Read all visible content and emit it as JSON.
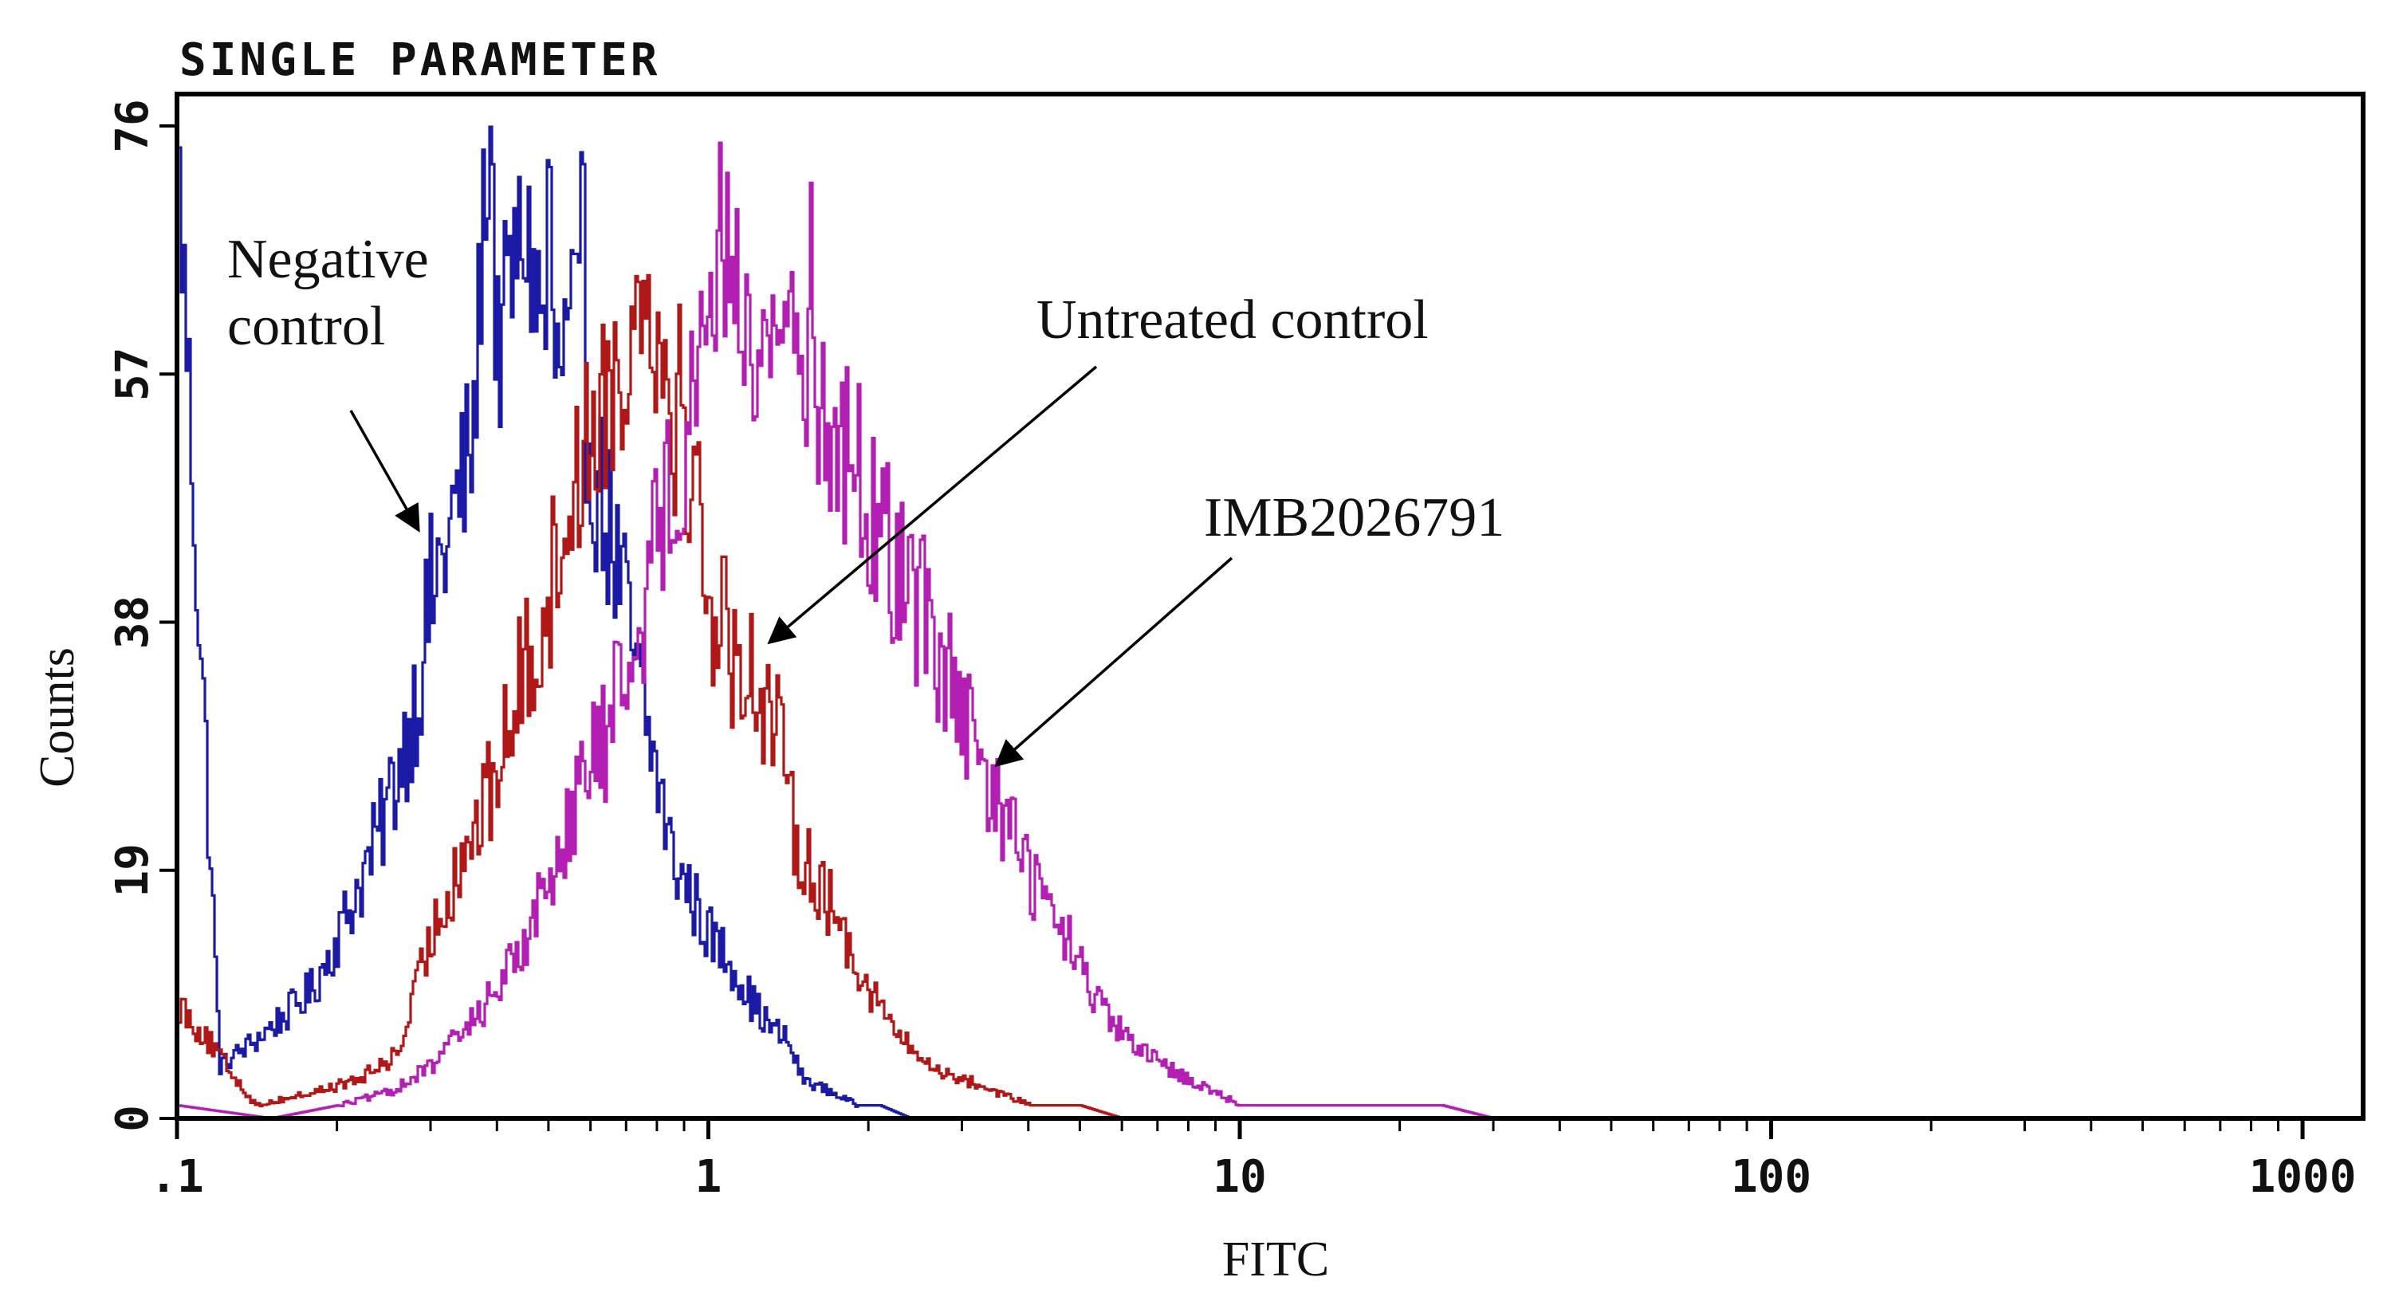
{
  "chart_data": {
    "type": "histogram",
    "title": "SINGLE PARAMETER",
    "xlabel": "FITC",
    "ylabel": "Counts",
    "x_scale": "log",
    "xlim": [
      0.1,
      1300
    ],
    "ylim": [
      0,
      76
    ],
    "x_tick_labels": [
      {
        "value": 0.1,
        "label": ".1"
      },
      {
        "value": 1,
        "label": "1"
      },
      {
        "value": 10,
        "label": "10"
      },
      {
        "value": 100,
        "label": "100"
      },
      {
        "value": 1000,
        "label": "1000"
      }
    ],
    "y_tick_labels": [
      {
        "value": 0,
        "label": "0"
      },
      {
        "value": 19,
        "label": "19"
      },
      {
        "value": 38,
        "label": "38"
      },
      {
        "value": 57,
        "label": "57"
      },
      {
        "value": 76,
        "label": "76"
      }
    ],
    "series": [
      {
        "name": "Negative control",
        "color": "#1a1aa6",
        "x": [
          0.1,
          0.12,
          0.14,
          0.16,
          0.18,
          0.2,
          0.22,
          0.24,
          0.26,
          0.28,
          0.3,
          0.32,
          0.34,
          0.36,
          0.38,
          0.4,
          0.42,
          0.45,
          0.48,
          0.52,
          0.56,
          0.6,
          0.65,
          0.7,
          0.75,
          0.8,
          0.85,
          0.9,
          0.95,
          1.0,
          1.1,
          1.2,
          1.3,
          1.4,
          1.5,
          1.7,
          1.9,
          2.1,
          2.4,
          2.7,
          3.0
        ],
        "values": [
          74,
          4,
          6,
          8,
          10,
          14,
          18,
          22,
          27,
          32,
          40,
          44,
          48,
          52,
          74,
          58,
          64,
          68,
          62,
          57,
          62,
          50,
          45,
          38,
          31,
          26,
          20,
          18,
          16,
          14,
          12,
          9,
          7,
          6,
          3,
          2,
          1,
          1,
          0,
          0,
          0
        ],
        "peaks": [
          {
            "x": 0.39,
            "value": 74
          },
          {
            "x": 0.5,
            "value": 71
          },
          {
            "x": 0.58,
            "value": 67
          }
        ]
      },
      {
        "name": "Untreated control",
        "color": "#b01818",
        "x": [
          0.1,
          0.14,
          0.18,
          0.22,
          0.26,
          0.3,
          0.34,
          0.38,
          0.42,
          0.46,
          0.5,
          0.55,
          0.6,
          0.65,
          0.7,
          0.75,
          0.8,
          0.85,
          0.9,
          0.95,
          1.0,
          1.1,
          1.2,
          1.3,
          1.45,
          1.6,
          1.8,
          2.0,
          2.3,
          2.6,
          3.0,
          3.5,
          4.0,
          5.0,
          6.0
        ],
        "values": [
          9,
          1,
          2,
          3,
          5,
          14,
          20,
          24,
          30,
          36,
          40,
          48,
          53,
          56,
          58,
          65,
          60,
          54,
          50,
          48,
          40,
          36,
          34,
          32,
          22,
          18,
          14,
          10,
          6,
          4,
          3,
          2,
          1,
          1,
          0
        ],
        "peaks": [
          {
            "x": 0.76,
            "value": 65
          },
          {
            "x": 0.87,
            "value": 62
          }
        ]
      },
      {
        "name": "IMB2026791",
        "color": "#b31fb3",
        "x": [
          0.1,
          0.15,
          0.2,
          0.25,
          0.3,
          0.35,
          0.4,
          0.45,
          0.5,
          0.55,
          0.6,
          0.65,
          0.7,
          0.8,
          0.9,
          1.0,
          1.1,
          1.2,
          1.35,
          1.5,
          1.7,
          1.9,
          2.1,
          2.4,
          2.7,
          3.0,
          3.3,
          3.7,
          4.2,
          4.8,
          5.5,
          6.5,
          8.0,
          10.0,
          14.0,
          20.0,
          24.0,
          30.0,
          1300.0
        ],
        "values": [
          1,
          0,
          1,
          2,
          4,
          7,
          10,
          14,
          18,
          24,
          27,
          30,
          35,
          45,
          52,
          64,
          67,
          57,
          62,
          59,
          52,
          50,
          44,
          41,
          36,
          30,
          26,
          22,
          17,
          13,
          8,
          5,
          3,
          1,
          1,
          1,
          1,
          0,
          0
        ],
        "peaks": [
          {
            "x": 1.05,
            "value": 68
          },
          {
            "x": 1.55,
            "value": 65
          }
        ]
      }
    ],
    "annotations": [
      {
        "text_lines": [
          "Negative",
          "control"
        ],
        "target_series": "Negative control"
      },
      {
        "text_lines": [
          "Untreated control"
        ],
        "target_series": "Untreated control"
      },
      {
        "text_lines": [
          "IMB2026791"
        ],
        "target_series": "IMB2026791"
      }
    ]
  }
}
